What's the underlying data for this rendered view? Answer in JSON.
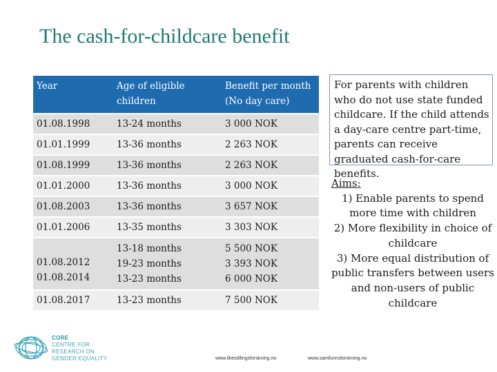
{
  "title": "The cash-for-childcare benefit",
  "table": {
    "headers": [
      "Year",
      "Age of eligible children",
      "Benefit per month (No day care)"
    ],
    "rows": [
      {
        "year": "01.08.1998",
        "age": "13-24 months",
        "benefit": "3 000 NOK"
      },
      {
        "year": "01.01.1999",
        "age": "13-36 months",
        "benefit": "2 263 NOK"
      },
      {
        "year": "01.08.1999",
        "age": "13-36 months",
        "benefit": "2 263 NOK"
      },
      {
        "year": "01.01.2000",
        "age": "13-36 months",
        "benefit": "3 000 NOK"
      },
      {
        "year": "01.08.2003",
        "age": "13-36 months",
        "benefit": "3 657 NOK"
      },
      {
        "year": "01.01.2006",
        "age": "13-35 months",
        "benefit": "3 303 NOK"
      },
      {
        "year": [
          "01.08.2012",
          "01.08.2014"
        ],
        "age": [
          "13-18 months",
          "19-23 months",
          "13-23 months"
        ],
        "benefit": [
          "5 500 NOK",
          "3 393 NOK",
          "6 000 NOK"
        ]
      },
      {
        "year": "01.08.2017",
        "age": "13-23 months",
        "benefit": "7 500 NOK"
      }
    ]
  },
  "note": "For parents with children who do not use state funded childcare. If the child attends a day-care centre part-time, parents can receive graduated cash-for-care benefits.",
  "aims": {
    "heading": "Aims:",
    "items": [
      "1) Enable parents to spend more time with children",
      "2)  More flexibility in choice of childcare",
      "3) More equal distribution of public transfers between users and non-users of public childcare"
    ]
  },
  "logo": {
    "lines": [
      "CORE",
      "CENTRE FOR",
      "RESEARCH ON",
      "GENDER EQUALITY"
    ],
    "color": "#3aa6bc"
  },
  "footer": {
    "link1": "www.likestillingsforskning.no",
    "link2": "www.samfunnsforskning.no"
  }
}
